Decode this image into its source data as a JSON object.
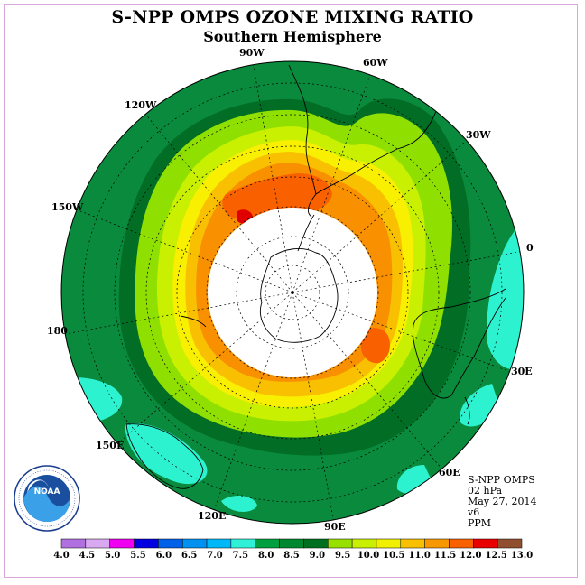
{
  "title": "S-NPP OMPS OZONE MIXING RATIO",
  "subtitle": "Southern Hemisphere",
  "longitude_labels": [
    "90W",
    "60W",
    "120W",
    "30W",
    "150W",
    "0",
    "180",
    "30E",
    "150E",
    "60E",
    "120E",
    "90E"
  ],
  "info": {
    "instrument": "S-NPP OMPS",
    "level": "02 hPa",
    "date": "May 27, 2014",
    "version": "v6",
    "units": "PPM"
  },
  "logo": {
    "text": "NOAA",
    "ring_text": "NATIONAL OCEANIC AND ATMOSPHERIC ADMINISTRATION · U.S. DEPARTMENT OF COMMERCE"
  },
  "colorbar": {
    "ticks": [
      "4.0",
      "4.5",
      "5.0",
      "5.5",
      "6.0",
      "6.5",
      "7.0",
      "7.5",
      "8.0",
      "8.5",
      "9.0",
      "9.5",
      "10.0",
      "10.5",
      "11.0",
      "11.5",
      "12.0",
      "12.5",
      "13.0"
    ],
    "colors": [
      "#b070e0",
      "#d8a8f0",
      "#f000f0",
      "#0000e0",
      "#0060e8",
      "#0090f0",
      "#00b8f8",
      "#30f0d8",
      "#00a040",
      "#008830",
      "#007020",
      "#98e000",
      "#c8f000",
      "#f0f000",
      "#f8c000",
      "#f89800",
      "#f86000",
      "#e80000",
      "#905030"
    ]
  },
  "map_colors": {
    "outer_green": "#0a8a3c",
    "dark_green": "#026d25",
    "lime": "#8fe000",
    "yellow_green": "#c8f000",
    "yellow": "#f8f000",
    "gold": "#f8c000",
    "orange": "#f89000",
    "red_orange": "#f86000",
    "red": "#e00000",
    "cyan": "#2cf2d0",
    "no_data": "#ffffff"
  }
}
